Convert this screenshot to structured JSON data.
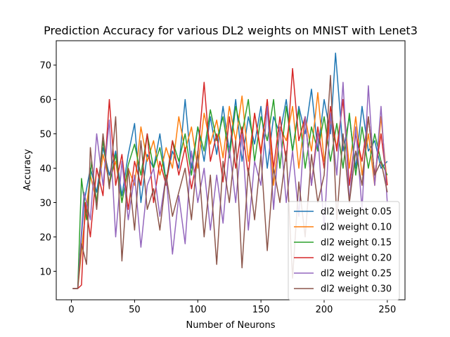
{
  "chart_data": {
    "type": "line",
    "title": "Prediction Accuracy for various DL2 weights on MNIST with Lenet3",
    "xlabel": "Number of Neurons",
    "ylabel": "Accuracy",
    "xlim": [
      -12,
      264
    ],
    "ylim": [
      1.7,
      77.1
    ],
    "xticks": [
      0,
      50,
      100,
      150,
      200,
      250
    ],
    "yticks": [
      10,
      20,
      30,
      40,
      50,
      60,
      70
    ],
    "legend_position": "lower right",
    "grid": false,
    "series": [
      {
        "name": "dl2 weight 0.05",
        "color": "#1f77b4",
        "x": [
          1,
          5,
          10,
          15,
          20,
          25,
          30,
          35,
          40,
          45,
          50,
          55,
          60,
          65,
          70,
          75,
          80,
          85,
          90,
          95,
          100,
          105,
          110,
          115,
          120,
          125,
          130,
          135,
          140,
          145,
          150,
          155,
          160,
          165,
          170,
          175,
          180,
          185,
          190,
          195,
          200,
          205,
          209,
          215,
          220,
          225,
          230,
          235,
          240,
          245,
          250
        ],
        "y": [
          5,
          5,
          30,
          40,
          33,
          46,
          38,
          45,
          32,
          44,
          53,
          30,
          44,
          40,
          50,
          36,
          45,
          40,
          60,
          40,
          52,
          42,
          55,
          44,
          58,
          45,
          60,
          42,
          55,
          47,
          58,
          40,
          55,
          50,
          60,
          45,
          58,
          50,
          63,
          45,
          60,
          50,
          73.5,
          45,
          55,
          40,
          58,
          45,
          48,
          40,
          42
        ]
      },
      {
        "name": "dl2 weight 0.10",
        "color": "#ff7f0e",
        "x": [
          1,
          5,
          10,
          15,
          20,
          25,
          30,
          35,
          40,
          45,
          50,
          55,
          60,
          65,
          70,
          75,
          80,
          85,
          90,
          95,
          100,
          105,
          110,
          115,
          120,
          125,
          130,
          135,
          140,
          145,
          150,
          155,
          160,
          165,
          170,
          175,
          180,
          185,
          190,
          195,
          200,
          205,
          210,
          215,
          220,
          225,
          230,
          235,
          240,
          245,
          250
        ],
        "y": [
          5,
          5,
          23,
          38,
          30,
          44,
          36,
          42,
          30,
          40,
          35,
          52,
          42,
          48,
          38,
          46,
          40,
          55,
          45,
          52,
          40,
          56,
          47,
          54,
          43,
          58,
          48,
          61,
          42,
          56,
          45,
          60,
          35,
          52,
          48,
          58,
          40,
          55,
          45,
          62,
          42,
          54,
          46,
          60,
          40,
          55,
          38,
          50,
          35,
          55,
          35
        ]
      },
      {
        "name": "dl2 weight 0.15",
        "color": "#2ca02c",
        "x": [
          1,
          5,
          8,
          12,
          16,
          20,
          25,
          30,
          35,
          40,
          45,
          50,
          55,
          60,
          65,
          70,
          75,
          80,
          85,
          90,
          95,
          100,
          105,
          110,
          115,
          120,
          125,
          130,
          135,
          140,
          145,
          150,
          155,
          160,
          165,
          170,
          175,
          180,
          185,
          190,
          195,
          200,
          205,
          210,
          215,
          220,
          225,
          230,
          235,
          240,
          245,
          250
        ],
        "y": [
          5,
          5,
          37,
          25,
          42,
          30,
          48,
          35,
          44,
          30,
          41,
          47,
          38,
          50,
          40,
          46,
          36,
          48,
          42,
          50,
          38,
          52,
          45,
          57,
          48,
          55,
          43,
          58,
          50,
          60,
          42,
          55,
          48,
          60,
          40,
          58,
          45,
          57,
          40,
          52,
          45,
          55,
          42,
          53,
          40,
          56,
          38,
          52,
          40,
          50,
          42,
          38
        ]
      },
      {
        "name": "dl2 weight 0.20",
        "color": "#d62728",
        "x": [
          1,
          5,
          8,
          11,
          15,
          20,
          25,
          30,
          35,
          40,
          45,
          50,
          55,
          60,
          65,
          70,
          75,
          80,
          85,
          90,
          95,
          100,
          105,
          110,
          115,
          120,
          125,
          130,
          135,
          140,
          145,
          150,
          155,
          160,
          165,
          170,
          175,
          180,
          185,
          190,
          195,
          200,
          205,
          210,
          215,
          220,
          225,
          230,
          235,
          240,
          245,
          250
        ],
        "y": [
          5,
          5,
          6,
          30,
          20,
          40,
          32,
          60,
          35,
          44,
          28,
          42,
          35,
          50,
          30,
          42,
          35,
          48,
          38,
          46,
          34,
          44,
          65,
          42,
          50,
          36,
          55,
          40,
          52,
          38,
          56,
          44,
          60,
          40,
          55,
          42,
          69,
          48,
          55,
          35,
          52,
          40,
          58,
          45,
          60,
          35,
          50,
          42,
          55,
          38,
          50,
          35
        ]
      },
      {
        "name": "dl2 weight 0.25",
        "color": "#9467bd",
        "x": [
          1,
          5,
          10,
          15,
          20,
          25,
          30,
          35,
          40,
          45,
          50,
          55,
          60,
          65,
          70,
          75,
          80,
          85,
          90,
          95,
          100,
          105,
          110,
          115,
          120,
          125,
          130,
          135,
          140,
          145,
          150,
          155,
          160,
          165,
          170,
          175,
          180,
          185,
          190,
          195,
          200,
          205,
          210,
          215,
          220,
          225,
          230,
          235,
          240,
          245,
          250
        ],
        "y": [
          5,
          5,
          33,
          25,
          50,
          35,
          54,
          20,
          42,
          25,
          38,
          17,
          35,
          40,
          26,
          38,
          15,
          32,
          18,
          45,
          30,
          40,
          22,
          38,
          24,
          46,
          30,
          50,
          22,
          42,
          35,
          58,
          28,
          52,
          30,
          45,
          26,
          55,
          35,
          50,
          22,
          56,
          38,
          65,
          30,
          52,
          28,
          64,
          35,
          58,
          30
        ]
      },
      {
        "name": "dl2 weight 0.30",
        "color": "#8c564b",
        "x": [
          1,
          5,
          8,
          12,
          15,
          20,
          25,
          30,
          35,
          40,
          45,
          50,
          55,
          60,
          65,
          70,
          75,
          80,
          85,
          90,
          95,
          100,
          105,
          110,
          115,
          120,
          125,
          130,
          135,
          140,
          145,
          150,
          155,
          160,
          165,
          170,
          175,
          180,
          185,
          190,
          195,
          200,
          205,
          210,
          215,
          220,
          225,
          230,
          235,
          240,
          245,
          250
        ],
        "y": [
          5,
          5,
          18,
          12,
          46,
          28,
          50,
          34,
          55,
          13,
          40,
          22,
          48,
          28,
          34,
          22,
          38,
          26,
          33,
          40,
          25,
          45,
          20,
          38,
          12,
          42,
          30,
          48,
          11,
          40,
          25,
          44,
          16,
          40,
          30,
          45,
          8,
          36,
          20,
          44,
          30,
          38,
          67,
          25,
          50,
          30,
          45,
          35,
          55,
          38,
          42,
          33
        ]
      }
    ]
  }
}
